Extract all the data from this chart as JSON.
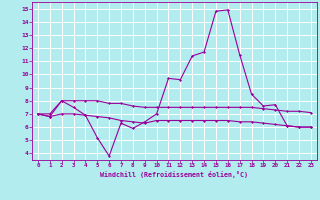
{
  "title": "",
  "xlabel": "Windchill (Refroidissement éolien,°C)",
  "background_color": "#b2ecef",
  "line_color": "#990099",
  "grid_color": "#ffffff",
  "xlim": [
    -0.5,
    23.5
  ],
  "ylim": [
    3.5,
    15.5
  ],
  "xticks": [
    0,
    1,
    2,
    3,
    4,
    5,
    6,
    7,
    8,
    9,
    10,
    11,
    12,
    13,
    14,
    15,
    16,
    17,
    18,
    19,
    20,
    21,
    22,
    23
  ],
  "yticks": [
    4,
    5,
    6,
    7,
    8,
    9,
    10,
    11,
    12,
    13,
    14,
    15
  ],
  "x": [
    0,
    1,
    2,
    3,
    4,
    5,
    6,
    7,
    8,
    9,
    10,
    11,
    12,
    13,
    14,
    15,
    16,
    17,
    18,
    19,
    20,
    21,
    22,
    23
  ],
  "y_main": [
    7.0,
    6.8,
    8.0,
    7.5,
    6.9,
    5.2,
    3.8,
    6.3,
    5.9,
    6.4,
    7.0,
    9.7,
    9.6,
    11.4,
    11.7,
    14.8,
    14.9,
    11.5,
    8.5,
    7.6,
    7.7,
    6.1,
    6.0,
    6.0
  ],
  "y_upper": [
    7.0,
    7.0,
    8.0,
    8.0,
    8.0,
    8.0,
    7.8,
    7.8,
    7.6,
    7.5,
    7.5,
    7.5,
    7.5,
    7.5,
    7.5,
    7.5,
    7.5,
    7.5,
    7.5,
    7.4,
    7.3,
    7.2,
    7.2,
    7.1
  ],
  "y_lower": [
    7.0,
    6.8,
    7.0,
    7.0,
    6.9,
    6.8,
    6.7,
    6.5,
    6.4,
    6.3,
    6.5,
    6.5,
    6.5,
    6.5,
    6.5,
    6.5,
    6.5,
    6.4,
    6.4,
    6.3,
    6.2,
    6.1,
    6.0,
    6.0
  ],
  "marker_size": 1.5,
  "line_width": 0.8
}
